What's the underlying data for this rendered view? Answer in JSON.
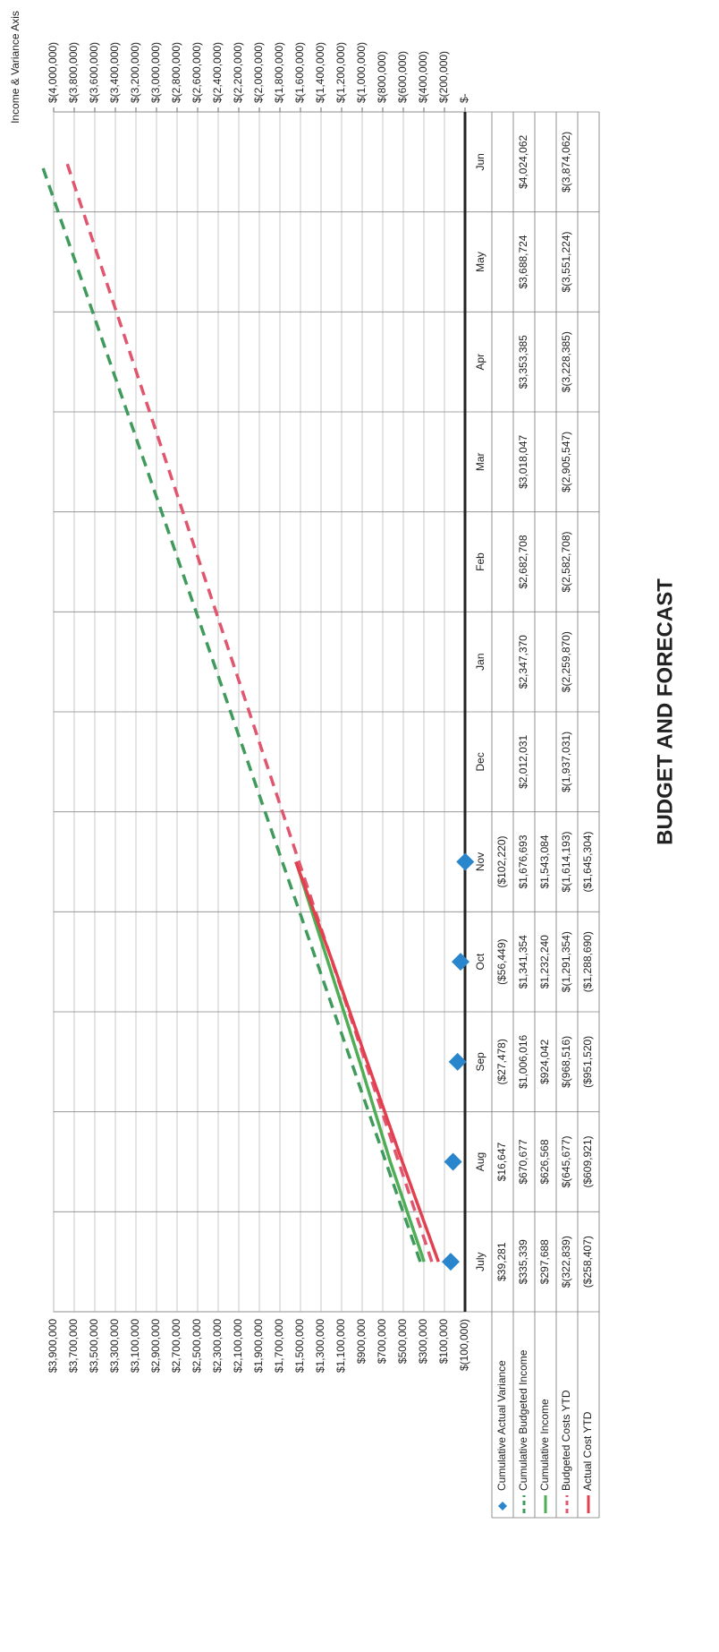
{
  "chart_data": {
    "type": "line",
    "title": "BUDGET AND FORECAST",
    "y_axis_title": "Income & Variance Axis",
    "categories": [
      "July",
      "Aug",
      "Sep",
      "Oct",
      "Nov",
      "Dec",
      "Jan",
      "Feb",
      "Mar",
      "Apr",
      "May",
      "Jun"
    ],
    "ylim": [
      -100000,
      3900000
    ],
    "yticks": [
      {
        "value": -100000,
        "label": "$(100,000)"
      },
      {
        "value": 100000,
        "label": "$100,000"
      },
      {
        "value": 300000,
        "label": "$300,000"
      },
      {
        "value": 500000,
        "label": "$500,000"
      },
      {
        "value": 700000,
        "label": "$700,000"
      },
      {
        "value": 900000,
        "label": "$900,000"
      },
      {
        "value": 1100000,
        "label": "$1,100,000"
      },
      {
        "value": 1300000,
        "label": "$1,300,000"
      },
      {
        "value": 1500000,
        "label": "$1,500,000"
      },
      {
        "value": 1700000,
        "label": "$1,700,000"
      },
      {
        "value": 1900000,
        "label": "$1,900,000"
      },
      {
        "value": 2100000,
        "label": "$2,100,000"
      },
      {
        "value": 2300000,
        "label": "$2,300,000"
      },
      {
        "value": 2500000,
        "label": "$2,500,000"
      },
      {
        "value": 2700000,
        "label": "$2,700,000"
      },
      {
        "value": 2900000,
        "label": "$2,900,000"
      },
      {
        "value": 3100000,
        "label": "$3,100,000"
      },
      {
        "value": 3300000,
        "label": "$3,300,000"
      },
      {
        "value": 3500000,
        "label": "$3,500,000"
      },
      {
        "value": 3700000,
        "label": "$3,700,000"
      },
      {
        "value": 3900000,
        "label": "$3,900,000"
      }
    ],
    "y2lim": [
      0,
      -4000000
    ],
    "y2ticks": [
      {
        "value": 0,
        "label": "$-"
      },
      {
        "value": -200000,
        "label": "$(200,000)"
      },
      {
        "value": -400000,
        "label": "$(400,000)"
      },
      {
        "value": -600000,
        "label": "$(600,000)"
      },
      {
        "value": -800000,
        "label": "$(800,000)"
      },
      {
        "value": -1000000,
        "label": "$(1,000,000)"
      },
      {
        "value": -1200000,
        "label": "$(1,200,000)"
      },
      {
        "value": -1400000,
        "label": "$(1,400,000)"
      },
      {
        "value": -1600000,
        "label": "$(1,600,000)"
      },
      {
        "value": -1800000,
        "label": "$(1,800,000)"
      },
      {
        "value": -2000000,
        "label": "$(2,000,000)"
      },
      {
        "value": -2200000,
        "label": "$(2,200,000)"
      },
      {
        "value": -2400000,
        "label": "$(2,400,000)"
      },
      {
        "value": -2600000,
        "label": "$(2,600,000)"
      },
      {
        "value": -2800000,
        "label": "$(2,800,000)"
      },
      {
        "value": -3000000,
        "label": "$(3,000,000)"
      },
      {
        "value": -3200000,
        "label": "$(3,200,000)"
      },
      {
        "value": -3400000,
        "label": "$(3,400,000)"
      },
      {
        "value": -3600000,
        "label": "$(3,600,000)"
      },
      {
        "value": -3800000,
        "label": "$(3,800,000)"
      },
      {
        "value": -4000000,
        "label": "$(4,000,000)"
      }
    ],
    "grid": true,
    "series": [
      {
        "name": "Cumulative Actual Variance",
        "color": "#2a86cc",
        "style": "marker",
        "values": [
          39281,
          16647,
          -27478,
          -56449,
          -102220,
          null,
          null,
          null,
          null,
          null,
          null,
          null
        ],
        "value_labels": [
          "$39,281",
          "$16,647",
          "($27,478)",
          "($56,449)",
          "($102,220)",
          null,
          null,
          null,
          null,
          null,
          null,
          null
        ]
      },
      {
        "name": "Cumulative Budgeted Income",
        "color": "#3f9a5c",
        "style": "dashed",
        "values": [
          335339,
          670677,
          1006016,
          1341354,
          1676693,
          2012031,
          2347370,
          2682708,
          3018047,
          3353385,
          3688724,
          4024062
        ],
        "value_labels": [
          "$335,339",
          "$670,677",
          "$1,006,016",
          "$1,341,354",
          "$1,676,693",
          "$2,012,031",
          "$2,347,370",
          "$2,682,708",
          "$3,018,047",
          "$3,353,385",
          "$3,688,724",
          "$4,024,062"
        ]
      },
      {
        "name": "Cumulative Income",
        "color": "#4fae55",
        "style": "solid",
        "values": [
          297688,
          626568,
          924042,
          1232240,
          1543084,
          null,
          null,
          null,
          null,
          null,
          null,
          null
        ],
        "value_labels": [
          "$297,688",
          "$626,568",
          "$924,042",
          "$1,232,240",
          "$1,543,084",
          null,
          null,
          null,
          null,
          null,
          null,
          null
        ]
      },
      {
        "name": "Budgeted Costs YTD",
        "color": "#e0566e",
        "style": "dashed",
        "axis": "y2",
        "values": [
          -322839,
          -645677,
          -968516,
          -1291354,
          -1614193,
          -1937031,
          -2259870,
          -2582708,
          -2905547,
          -3228385,
          -3551224,
          -3874062
        ],
        "value_labels": [
          "$(322,839)",
          "$(645,677)",
          "$(968,516)",
          "$(1,291,354)",
          "$(1,614,193)",
          "$(1,937,031)",
          "$(2,259,870)",
          "$(2,582,708)",
          "$(2,905,547)",
          "$(3,228,385)",
          "$(3,551,224)",
          "$(3,874,062)"
        ]
      },
      {
        "name": "Actual Cost YTD",
        "color": "#e2404e",
        "style": "solid",
        "axis": "y2",
        "values": [
          -258407,
          -609921,
          -951520,
          -1288690,
          -1645304,
          null,
          null,
          null,
          null,
          null,
          null,
          null
        ],
        "value_labels": [
          "($258,407)",
          "($609,921)",
          "($951,520)",
          "($1,288,690)",
          "($1,645,304)",
          null,
          null,
          null,
          null,
          null,
          null,
          null
        ]
      }
    ]
  }
}
